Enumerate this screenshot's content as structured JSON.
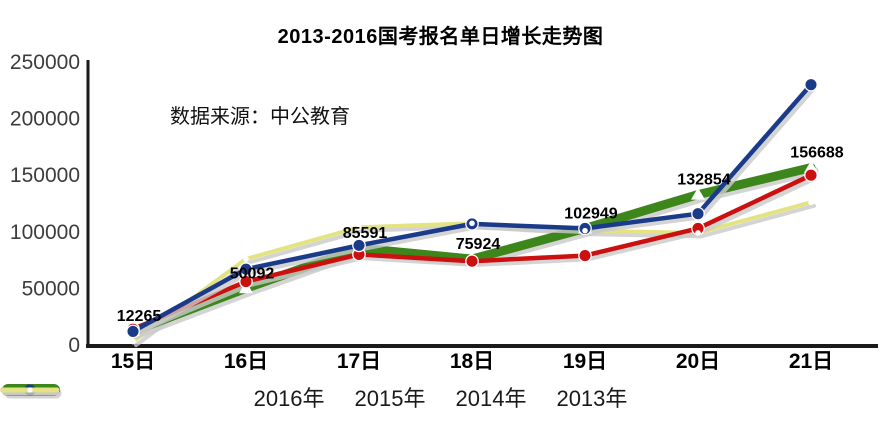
{
  "title": "2013-2016国考报名单日增长走势图",
  "source_note": "数据来源：中公教育",
  "chart_data": {
    "type": "line",
    "title": "2013-2016国考报名单日增长走势图",
    "annotation": "数据来源：中公教育",
    "categories": [
      "15日",
      "16日",
      "17日",
      "18日",
      "19日",
      "20日",
      "21日"
    ],
    "series": [
      {
        "name": "2016年",
        "color": "#3d861c",
        "marker": "white-triangle",
        "line_width": 9,
        "values": [
          12265,
          50092,
          85591,
          75924,
          102949,
          132854,
          156688
        ],
        "data_labels": [
          "12265",
          "50092",
          "85591",
          "75924",
          "102949",
          "132854",
          "156688"
        ]
      },
      {
        "name": "2015年",
        "color": "#cc0f0f",
        "marker": "filled-circle",
        "line_width": 4.5,
        "values": [
          14000,
          56000,
          80000,
          74000,
          79000,
          103000,
          150000
        ]
      },
      {
        "name": "2014年",
        "color": "#1a3a8a",
        "marker": "filled-circle",
        "line_width": 4.5,
        "values": [
          12000,
          67000,
          88000,
          107000,
          103000,
          116000,
          230000
        ]
      },
      {
        "name": "2013年",
        "color": "#e3e382",
        "marker": "white-dot",
        "line_width": 4,
        "values": [
          3000,
          76000,
          104000,
          107500,
          101000,
          99000,
          126000
        ]
      }
    ],
    "xlabel": "",
    "ylabel": "",
    "ylim": [
      0,
      250000
    ],
    "yticks": [
      0,
      50000,
      100000,
      150000,
      200000,
      250000
    ],
    "grid": false,
    "legend_position": "bottom",
    "shadow_color": "#c9c9c9",
    "axis_color": "#1a1a1a"
  }
}
